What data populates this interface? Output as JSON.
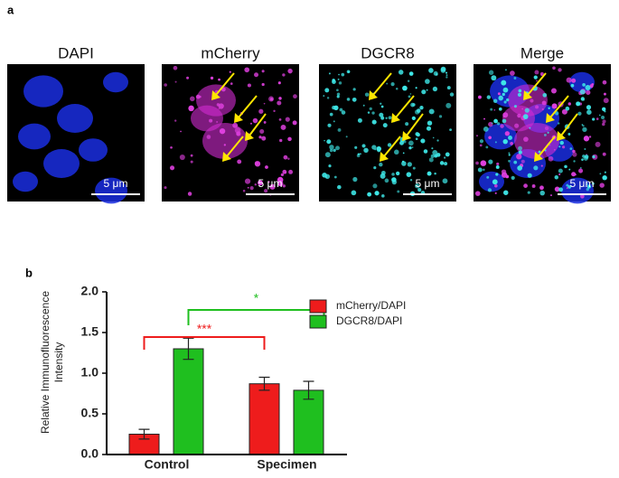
{
  "panel_a": {
    "label": "a",
    "images": [
      {
        "title": "DAPI",
        "scale": "5 μm"
      },
      {
        "title": "mCherry",
        "scale": "5 μm"
      },
      {
        "title": "DGCR8",
        "scale": "5 μm"
      },
      {
        "title": "Merge",
        "scale": "5 μm"
      }
    ]
  },
  "chart_data": {
    "type": "bar",
    "panel_label": "b",
    "y_label": "Relative Immunofluorescence Intensity",
    "categories": [
      "Control",
      "Specimen"
    ],
    "series": [
      {
        "name": "mCherry/DAPI",
        "color": "#ee1c1c",
        "values": [
          0.25,
          0.87
        ],
        "errors": [
          0.06,
          0.08
        ]
      },
      {
        "name": "DGCR8/DAPI",
        "color": "#1fbf1f",
        "values": [
          1.3,
          0.79
        ],
        "errors": [
          0.13,
          0.11
        ]
      }
    ],
    "ylim": [
      0,
      2.0
    ],
    "yticks": [
      {
        "value": 0,
        "label": "0.0"
      },
      {
        "value": 0.5,
        "label": "0.5"
      },
      {
        "value": 1.0,
        "label": "1.0"
      },
      {
        "value": 1.5,
        "label": "1.5"
      },
      {
        "value": 2.0,
        "label": "2.0"
      }
    ],
    "annotations": [
      {
        "text": "***",
        "color": "#ee1c1c"
      },
      {
        "text": "*",
        "color": "#1fbf1f"
      }
    ],
    "legend": "top-right"
  }
}
